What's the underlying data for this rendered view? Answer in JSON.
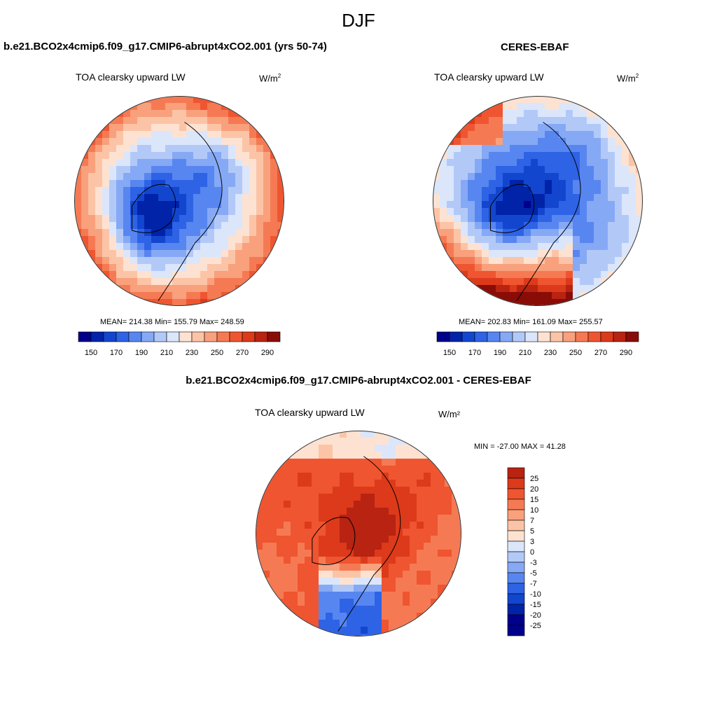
{
  "title": "DJF",
  "colors": {
    "cool_ramp": [
      "#00008b",
      "#0023a8",
      "#1346cf",
      "#2e63e6",
      "#5886f0",
      "#86a9f5",
      "#b2c9f8",
      "#dbe6fb"
    ],
    "warm_ramp": [
      "#fde2d2",
      "#fcc4a7",
      "#f9a07c",
      "#f57a53",
      "#ef5530",
      "#dc3a1a",
      "#b82312",
      "#8a0c07"
    ]
  },
  "panels": [
    {
      "name": "model",
      "header": "b.e21.BCO2x4cmip6.f09_g17.CMIP6-abrupt4xCO2.001 (yrs 50-74)",
      "variable": "TOA clearsky upward LW",
      "units_base": "W/m",
      "units_exp": "2",
      "stats": "MEAN= 214.38  Min= 155.79  Max= 248.59"
    },
    {
      "name": "obs",
      "header": "CERES-EBAF",
      "variable": "TOA clearsky upward LW",
      "units_base": "W/m",
      "units_exp": "2",
      "stats": "MEAN= 202.83  Min= 161.09  Max= 255.57"
    },
    {
      "name": "diff",
      "header": "b.e21.BCO2x4cmip6.f09_g17.CMIP6-abrupt4xCO2.001 - CERES-EBAF",
      "variable": "TOA clearsky upward LW",
      "units": "W/m²",
      "stats": "MIN = -27.00 MAX =  41.28"
    }
  ],
  "chart_data": [
    {
      "type": "heatmap",
      "projection": "north polar stereographic",
      "title": "TOA clearsky upward LW",
      "units": "W/m2",
      "mean": 214.38,
      "min": 155.79,
      "max": 248.59,
      "colorbar_levels": [
        150,
        160,
        170,
        180,
        190,
        200,
        210,
        220,
        230,
        240,
        250,
        260,
        270,
        280,
        290
      ],
      "colorbar_labels": [
        "150",
        "170",
        "190",
        "210",
        "230",
        "250",
        "270",
        "290"
      ]
    },
    {
      "type": "heatmap",
      "projection": "north polar stereographic",
      "title": "TOA clearsky upward LW",
      "units": "W/m2",
      "mean": 202.83,
      "min": 161.09,
      "max": 255.57,
      "colorbar_levels": [
        150,
        160,
        170,
        180,
        190,
        200,
        210,
        220,
        230,
        240,
        250,
        260,
        270,
        280,
        290
      ],
      "colorbar_labels": [
        "150",
        "170",
        "190",
        "210",
        "230",
        "250",
        "270",
        "290"
      ]
    },
    {
      "type": "heatmap",
      "projection": "north polar stereographic",
      "title": "TOA clearsky upward LW",
      "units": "W/m2",
      "min": -27.0,
      "max": 41.28,
      "colorbar_levels": [
        25,
        20,
        15,
        10,
        7,
        5,
        3,
        0,
        -3,
        -5,
        -7,
        -10,
        -15,
        -20,
        -25
      ],
      "colorbar_labels": [
        "25",
        "20",
        "15",
        "10",
        "7",
        "5",
        "3",
        "0",
        "-3",
        "-5",
        "-7",
        "-10",
        "-15",
        "-20",
        "-25"
      ]
    }
  ]
}
